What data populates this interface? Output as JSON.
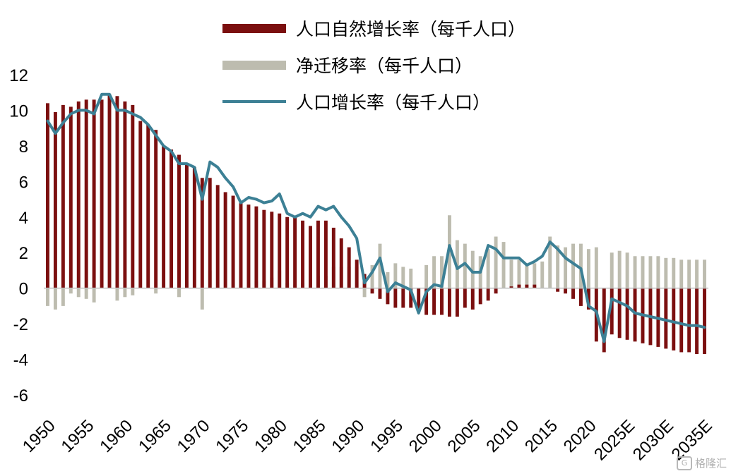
{
  "chart_data": {
    "type": "bar",
    "title": "",
    "xlabel": "",
    "ylabel": "",
    "ylim": [
      -6,
      12
    ],
    "y_ticks": [
      -6,
      -4,
      -2,
      0,
      2,
      4,
      6,
      8,
      10,
      12
    ],
    "x_tick_labels": [
      "1950",
      "1955",
      "1960",
      "1965",
      "1970",
      "1975",
      "1980",
      "1985",
      "1990",
      "1995",
      "2000",
      "2005",
      "2010",
      "2015",
      "2020",
      "2025E",
      "2030E",
      "2035E"
    ],
    "grid": false,
    "legend_position": "top-center",
    "x": [
      "1950",
      "1951",
      "1952",
      "1953",
      "1954",
      "1955",
      "1956",
      "1957",
      "1958",
      "1959",
      "1960",
      "1961",
      "1962",
      "1963",
      "1964",
      "1965",
      "1966",
      "1967",
      "1968",
      "1969",
      "1970",
      "1971",
      "1972",
      "1973",
      "1974",
      "1975",
      "1976",
      "1977",
      "1978",
      "1979",
      "1980",
      "1981",
      "1982",
      "1983",
      "1984",
      "1985",
      "1986",
      "1987",
      "1988",
      "1989",
      "1990",
      "1991",
      "1992",
      "1993",
      "1994",
      "1995",
      "1996",
      "1997",
      "1998",
      "1999",
      "2000",
      "2001",
      "2002",
      "2003",
      "2004",
      "2005",
      "2006",
      "2007",
      "2008",
      "2009",
      "2010",
      "2011",
      "2012",
      "2013",
      "2014",
      "2015",
      "2016",
      "2017",
      "2018",
      "2019",
      "2020",
      "2021",
      "2022",
      "2023",
      "2024",
      "2025E",
      "2026E",
      "2027E",
      "2028E",
      "2029E",
      "2030E",
      "2031E",
      "2032E",
      "2033E",
      "2034E",
      "2035E"
    ],
    "series": [
      {
        "name": "人口自然增长率（每千人口）",
        "kind": "bar",
        "color": "#7b0f0f",
        "values": [
          10.4,
          9.9,
          10.3,
          10.2,
          10.5,
          10.6,
          10.6,
          10.6,
          10.9,
          10.8,
          10.5,
          10.3,
          9.4,
          9.2,
          8.9,
          8.0,
          7.8,
          7.5,
          7.0,
          6.8,
          6.2,
          6.2,
          5.8,
          5.4,
          5.2,
          4.8,
          4.7,
          4.6,
          4.4,
          4.3,
          4.2,
          4.0,
          4.0,
          3.8,
          3.5,
          3.8,
          3.8,
          3.4,
          2.8,
          2.3,
          1.6,
          0.8,
          -0.3,
          -0.6,
          -0.9,
          -1.1,
          -1.1,
          -1.1,
          -1.3,
          -1.5,
          -1.5,
          -1.5,
          -1.6,
          -1.6,
          -1.1,
          -1.2,
          -0.9,
          -0.7,
          -0.3,
          0.0,
          0.1,
          0.2,
          0.2,
          0.2,
          0.0,
          0.0,
          -0.2,
          -0.3,
          -0.6,
          -1.0,
          -1.2,
          -3.0,
          -3.6,
          -2.6,
          -2.8,
          -2.9,
          -3.0,
          -3.1,
          -3.2,
          -3.3,
          -3.4,
          -3.5,
          -3.6,
          -3.6,
          -3.7,
          -3.7
        ]
      },
      {
        "name": "净迁移率（每千人口）",
        "kind": "bar",
        "color": "#bdbcaf",
        "values": [
          -1.0,
          -1.2,
          -1.0,
          -0.3,
          -0.5,
          -0.6,
          -0.8,
          0.0,
          0.0,
          -0.7,
          -0.5,
          -0.4,
          0.0,
          0.0,
          -0.3,
          0.0,
          0.0,
          -0.5,
          0.0,
          0.0,
          -1.2,
          1.0,
          0.0,
          0.0,
          0.0,
          0.0,
          0.3,
          0.4,
          0.4,
          0.6,
          1.0,
          0.3,
          0.2,
          0.3,
          0.5,
          0.7,
          0.7,
          1.2,
          1.2,
          1.2,
          1.2,
          -0.5,
          1.3,
          2.5,
          0.9,
          1.4,
          1.2,
          1.1,
          0.0,
          1.3,
          1.8,
          1.8,
          4.1,
          2.7,
          2.5,
          2.1,
          1.8,
          2.2,
          2.9,
          2.6,
          1.6,
          1.6,
          1.4,
          1.4,
          1.5,
          2.9,
          2.4,
          2.3,
          2.5,
          2.5,
          2.2,
          2.3,
          0.0,
          2.0,
          2.1,
          2.0,
          1.8,
          1.8,
          1.8,
          1.8,
          1.7,
          1.7,
          1.6,
          1.6,
          1.6,
          1.6
        ]
      },
      {
        "name": "人口增长率（每千人口）",
        "kind": "line",
        "color": "#3c8095",
        "values": [
          9.4,
          8.7,
          9.3,
          9.8,
          10.0,
          10.0,
          9.8,
          10.9,
          10.9,
          10.0,
          10.0,
          9.8,
          9.6,
          9.2,
          8.6,
          8.0,
          7.7,
          7.0,
          7.0,
          6.8,
          5.0,
          7.1,
          6.8,
          6.2,
          5.7,
          4.8,
          5.1,
          5.0,
          4.8,
          4.9,
          5.3,
          4.2,
          4.0,
          4.2,
          4.0,
          4.6,
          4.4,
          4.6,
          4.0,
          3.5,
          2.8,
          0.3,
          0.9,
          1.7,
          -0.2,
          0.3,
          0.1,
          -0.1,
          -1.4,
          -0.2,
          0.2,
          0.1,
          2.4,
          1.1,
          1.4,
          0.9,
          0.9,
          2.4,
          2.2,
          1.7,
          1.7,
          1.7,
          1.3,
          1.5,
          1.8,
          2.6,
          2.2,
          1.7,
          1.4,
          1.1,
          -1.0,
          -1.3,
          -3.0,
          -0.6,
          -0.8,
          -1.0,
          -1.4,
          -1.5,
          -1.6,
          -1.7,
          -1.8,
          -1.9,
          -2.0,
          -2.1,
          -2.1,
          -2.2
        ]
      }
    ]
  },
  "watermark": {
    "logo_letter": "G",
    "text": "格隆汇"
  }
}
